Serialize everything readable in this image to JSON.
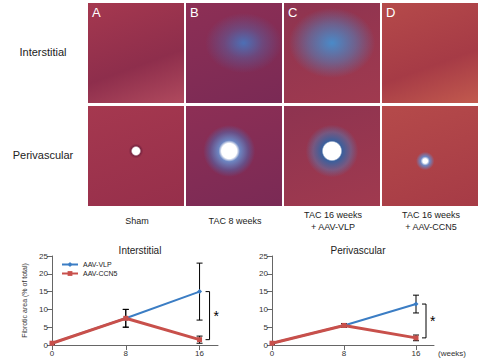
{
  "panels": {
    "letters": [
      "A",
      "B",
      "C",
      "D"
    ],
    "rows": [
      "Interstitial",
      "Perivascular"
    ],
    "columns": [
      [
        "Sham"
      ],
      [
        "TAC 8 weeks"
      ],
      [
        "TAC 16 weeks",
        "+ AAV-VLP"
      ],
      [
        "TAC 16 weeks",
        "+ AAV-CCN5"
      ]
    ]
  },
  "chart_data": [
    {
      "type": "line",
      "title": "Interstitial",
      "ylabel": "Fibrotic area (% of total)",
      "x": [
        0,
        8,
        16
      ],
      "series": [
        {
          "name": "AAV-VLP",
          "color": "#3b7dc4",
          "marker": "diamond",
          "values": [
            0.5,
            7.5,
            15
          ],
          "errors": [
            0.3,
            2.5,
            8
          ]
        },
        {
          "name": "AAV-CCN5",
          "color": "#c8504b",
          "marker": "square",
          "values": [
            0.5,
            7.5,
            1.5
          ],
          "errors": [
            0.3,
            2.5,
            1
          ]
        }
      ],
      "xlim": [
        0,
        18
      ],
      "xticks": [
        0,
        8,
        16
      ],
      "ylim": [
        0,
        25
      ],
      "yticks": [
        0,
        5,
        10,
        15,
        20,
        25
      ],
      "grid": false,
      "legend": "upper left",
      "annotations": [
        {
          "text": "*",
          "x": 16,
          "between": [
            "AAV-VLP",
            "AAV-CCN5"
          ]
        }
      ]
    },
    {
      "type": "line",
      "title": "Perivascular",
      "xlabel": "(weeks)",
      "x": [
        0,
        8,
        16
      ],
      "series": [
        {
          "name": "AAV-VLP",
          "color": "#3b7dc4",
          "marker": "diamond",
          "values": [
            0.5,
            5.5,
            11.5
          ],
          "errors": [
            0.3,
            0.5,
            2.5
          ]
        },
        {
          "name": "AAV-CCN5",
          "color": "#c8504b",
          "marker": "square",
          "values": [
            0.5,
            5.5,
            2
          ],
          "errors": [
            0.3,
            0.5,
            0.8
          ]
        }
      ],
      "xlim": [
        0,
        18
      ],
      "xticks": [
        0,
        8,
        16
      ],
      "ylim": [
        0,
        25
      ],
      "yticks": [
        0,
        5,
        10,
        15,
        20,
        25
      ],
      "grid": false,
      "annotations": [
        {
          "text": "*",
          "x": 16,
          "between": [
            "AAV-VLP",
            "AAV-CCN5"
          ]
        }
      ]
    }
  ]
}
